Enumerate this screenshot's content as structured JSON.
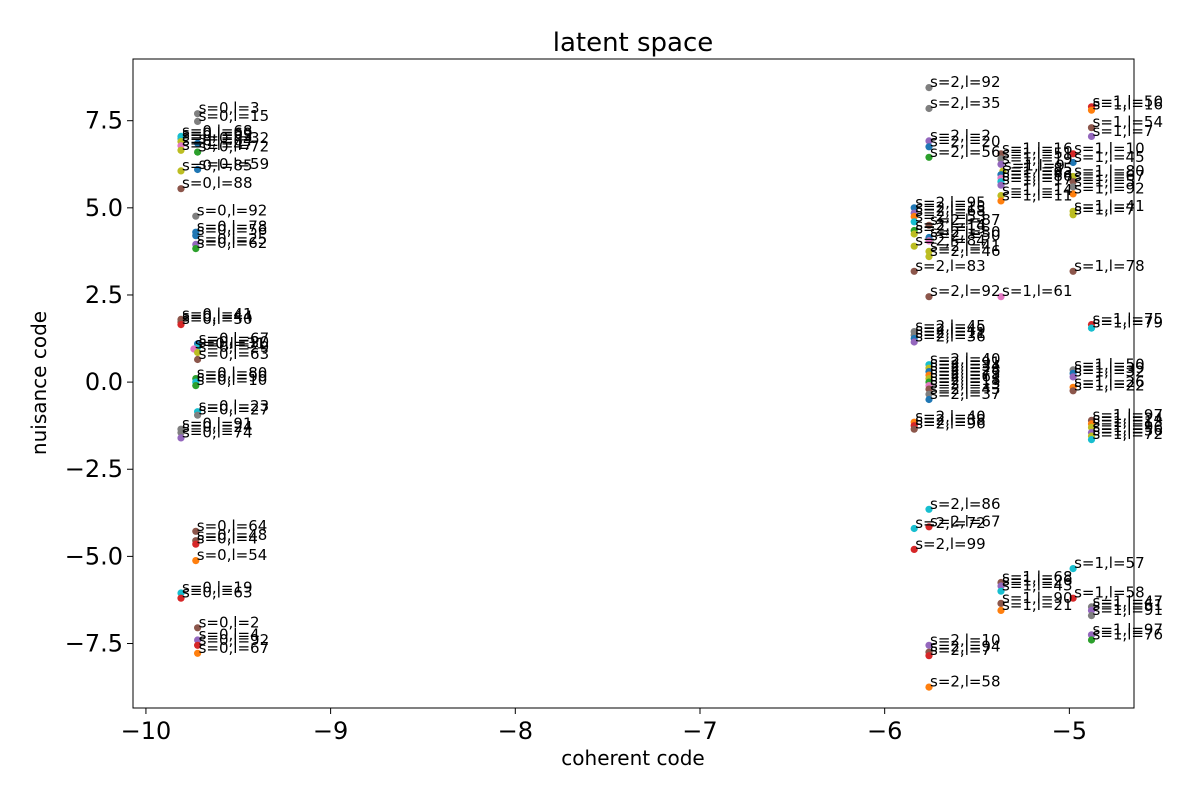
{
  "chart_data": {
    "type": "scatter",
    "title": "latent space",
    "xlabel": "coherent code",
    "ylabel": "nuisance code",
    "xlim": [
      -10.07,
      -4.65
    ],
    "ylim": [
      -9.35,
      9.27
    ],
    "grid": false,
    "xticks": [
      -10,
      -9,
      -8,
      -7,
      -6,
      -5
    ],
    "xtick_labels": [
      "−10",
      "−9",
      "−8",
      "−7",
      "−6",
      "−5"
    ],
    "yticks": [
      7.5,
      5.0,
      2.5,
      0.0,
      -2.5,
      -5.0,
      -7.5
    ],
    "ytick_labels": [
      "7.5",
      "5.0",
      "2.5",
      "0.0",
      "−2.5",
      "−5.0",
      "−7.5"
    ],
    "palette": [
      "#1f77b4",
      "#ff7f0e",
      "#2ca02c",
      "#d62728",
      "#9467bd",
      "#8c564b",
      "#e377c2",
      "#7f7f7f",
      "#bcbd22",
      "#17becf"
    ],
    "points": [
      {
        "x": -9.72,
        "y": 7.7,
        "label": "s=0,l=3",
        "color": "#7f7f7f"
      },
      {
        "x": -9.72,
        "y": 7.48,
        "label": "s=0,l=15",
        "color": "#7f7f7f"
      },
      {
        "x": -9.81,
        "y": 7.05,
        "label": "s=0,l=68",
        "color": "#17becf"
      },
      {
        "x": -9.81,
        "y": 6.98,
        "label": "s=0,l=69",
        "color": "#17becf"
      },
      {
        "x": -9.81,
        "y": 6.9,
        "label": "s=0,l=33",
        "color": "#bcbd22"
      },
      {
        "x": -9.72,
        "y": 6.85,
        "label": "s=0,l=32",
        "color": "#1f77b4"
      },
      {
        "x": -9.81,
        "y": 6.78,
        "label": "s=0,l=64",
        "color": "#e377c2"
      },
      {
        "x": -9.81,
        "y": 6.65,
        "label": "s=0,l=47",
        "color": "#bcbd22"
      },
      {
        "x": -9.72,
        "y": 6.6,
        "label": "s=0,l=72",
        "color": "#2ca02c"
      },
      {
        "x": -9.81,
        "y": 6.06,
        "label": "s=0,l=85",
        "color": "#bcbd22"
      },
      {
        "x": -9.72,
        "y": 6.1,
        "label": "s=0,l=59",
        "color": "#1f77b4"
      },
      {
        "x": -9.81,
        "y": 5.55,
        "label": "s=0,l=88",
        "color": "#8c564b"
      },
      {
        "x": -9.73,
        "y": 4.76,
        "label": "s=0,l=92",
        "color": "#7f7f7f"
      },
      {
        "x": -9.73,
        "y": 4.3,
        "label": "s=0,l=78",
        "color": "#1f77b4"
      },
      {
        "x": -9.73,
        "y": 4.2,
        "label": "s=0,l=56",
        "color": "#1f77b4"
      },
      {
        "x": -9.73,
        "y": 3.95,
        "label": "s=0,l=25",
        "color": "#9467bd"
      },
      {
        "x": -9.73,
        "y": 3.83,
        "label": "s=0,l=62",
        "color": "#2ca02c"
      },
      {
        "x": -9.81,
        "y": 1.8,
        "label": "s=0,l=41",
        "color": "#8c564b"
      },
      {
        "x": -9.81,
        "y": 1.72,
        "label": "s=0,l=44",
        "color": "#8c564b"
      },
      {
        "x": -9.81,
        "y": 1.65,
        "label": "s=0,l=50",
        "color": "#d62728"
      },
      {
        "x": -9.72,
        "y": 1.1,
        "label": "s=0,l=67",
        "color": "#1f77b4"
      },
      {
        "x": -9.72,
        "y": 1.0,
        "label": "s=0,l=20",
        "color": "#17becf"
      },
      {
        "x": -9.74,
        "y": 0.95,
        "label": "s=0,l=31",
        "color": "#e377c2"
      },
      {
        "x": -9.72,
        "y": 0.85,
        "label": "s=0,l=29",
        "color": "#bcbd22"
      },
      {
        "x": -9.72,
        "y": 0.65,
        "label": "s=0,l=63",
        "color": "#8c564b"
      },
      {
        "x": -9.73,
        "y": 0.1,
        "label": "s=0,l=80",
        "color": "#2ca02c"
      },
      {
        "x": -9.73,
        "y": 0.0,
        "label": "s=0,l=90",
        "color": "#17becf"
      },
      {
        "x": -9.73,
        "y": -0.1,
        "label": "s=0,l=10",
        "color": "#2ca02c"
      },
      {
        "x": -9.72,
        "y": -0.85,
        "label": "s=0,l=23",
        "color": "#17becf"
      },
      {
        "x": -9.72,
        "y": -0.95,
        "label": "s=0,l=27",
        "color": "#7f7f7f"
      },
      {
        "x": -9.81,
        "y": -1.35,
        "label": "s=0,l=91",
        "color": "#7f7f7f"
      },
      {
        "x": -9.81,
        "y": -1.45,
        "label": "s=0,l=24",
        "color": "#7f7f7f"
      },
      {
        "x": -9.81,
        "y": -1.6,
        "label": "s=0,l=74",
        "color": "#9467bd"
      },
      {
        "x": -9.73,
        "y": -4.28,
        "label": "s=0,l=64",
        "color": "#8c564b"
      },
      {
        "x": -9.73,
        "y": -4.55,
        "label": "s=0,l=48",
        "color": "#8c564b"
      },
      {
        "x": -9.73,
        "y": -4.65,
        "label": "s=0,l=4",
        "color": "#d62728"
      },
      {
        "x": -9.73,
        "y": -5.12,
        "label": "s=0,l=54",
        "color": "#ff7f0e"
      },
      {
        "x": -9.81,
        "y": -6.05,
        "label": "s=0,l=19",
        "color": "#17becf"
      },
      {
        "x": -9.81,
        "y": -6.2,
        "label": "s=0,l=63",
        "color": "#d62728"
      },
      {
        "x": -9.72,
        "y": -7.05,
        "label": "s=0,l=2",
        "color": "#8c564b"
      },
      {
        "x": -9.72,
        "y": -7.4,
        "label": "s=0,l=4",
        "color": "#9467bd"
      },
      {
        "x": -9.72,
        "y": -7.55,
        "label": "s=0,l=92",
        "color": "#d62728"
      },
      {
        "x": -9.72,
        "y": -7.78,
        "label": "s=0,l=67",
        "color": "#ff7f0e"
      },
      {
        "x": -5.76,
        "y": 8.45,
        "label": "s=2,l=92",
        "color": "#7f7f7f"
      },
      {
        "x": -5.76,
        "y": 7.85,
        "label": "s=2,l=35",
        "color": "#7f7f7f"
      },
      {
        "x": -5.76,
        "y": 6.92,
        "label": "s=2,l=2",
        "color": "#9467bd"
      },
      {
        "x": -5.76,
        "y": 6.75,
        "label": "s=2,l=20",
        "color": "#1f77b4"
      },
      {
        "x": -5.76,
        "y": 6.45,
        "label": "s=2,l=56",
        "color": "#2ca02c"
      },
      {
        "x": -5.84,
        "y": 5.0,
        "label": "s=2,l=95",
        "color": "#1f77b4"
      },
      {
        "x": -5.84,
        "y": 4.85,
        "label": "s=2,l=15",
        "color": "#9467bd"
      },
      {
        "x": -5.84,
        "y": 4.75,
        "label": "s=2,l=68",
        "color": "#ff7f0e"
      },
      {
        "x": -5.84,
        "y": 4.6,
        "label": "s=2,l=53",
        "color": "#17becf"
      },
      {
        "x": -5.76,
        "y": 4.5,
        "label": "s=2,l=87",
        "color": "#8c564b"
      },
      {
        "x": -5.84,
        "y": 4.35,
        "label": "s=2,l=14",
        "color": "#2ca02c"
      },
      {
        "x": -5.84,
        "y": 4.25,
        "label": "s=2,l=19",
        "color": "#bcbd22"
      },
      {
        "x": -5.76,
        "y": 4.15,
        "label": "s=2,l=30",
        "color": "#1f77b4"
      },
      {
        "x": -5.76,
        "y": 4.05,
        "label": "s=2,l=50",
        "color": "#e377c2"
      },
      {
        "x": -5.84,
        "y": 3.9,
        "label": "s=2,l=84",
        "color": "#bcbd22"
      },
      {
        "x": -5.76,
        "y": 3.75,
        "label": "s=2,l=41",
        "color": "#bcbd22"
      },
      {
        "x": -5.76,
        "y": 3.6,
        "label": "s=2,l=46",
        "color": "#bcbd22"
      },
      {
        "x": -5.84,
        "y": 3.18,
        "label": "s=2,l=83",
        "color": "#8c564b"
      },
      {
        "x": -5.76,
        "y": 2.45,
        "label": "s=2,l=92",
        "color": "#8c564b"
      },
      {
        "x": -5.84,
        "y": 1.45,
        "label": "s=2,l=45",
        "color": "#7f7f7f"
      },
      {
        "x": -5.84,
        "y": 1.35,
        "label": "s=2,l=49",
        "color": "#7f7f7f"
      },
      {
        "x": -5.84,
        "y": 1.25,
        "label": "s=2,l=11",
        "color": "#1f77b4"
      },
      {
        "x": -5.84,
        "y": 1.15,
        "label": "s=2,l=36",
        "color": "#9467bd"
      },
      {
        "x": -5.76,
        "y": 0.5,
        "label": "s=2,l=40",
        "color": "#17becf"
      },
      {
        "x": -5.76,
        "y": 0.4,
        "label": "s=2,l=91",
        "color": "#bcbd22"
      },
      {
        "x": -5.76,
        "y": 0.3,
        "label": "s=2,l=34",
        "color": "#1f77b4"
      },
      {
        "x": -5.76,
        "y": 0.2,
        "label": "s=2,l=28",
        "color": "#ff7f0e"
      },
      {
        "x": -5.76,
        "y": 0.1,
        "label": "s=2,l=75",
        "color": "#bcbd22"
      },
      {
        "x": -5.76,
        "y": 0.0,
        "label": "s=2,l=61",
        "color": "#2ca02c"
      },
      {
        "x": -5.76,
        "y": -0.1,
        "label": "s=2,l=18",
        "color": "#e377c2"
      },
      {
        "x": -5.76,
        "y": -0.2,
        "label": "s=2,l=13",
        "color": "#8c564b"
      },
      {
        "x": -5.76,
        "y": -0.35,
        "label": "s=2,l=43",
        "color": "#7f7f7f"
      },
      {
        "x": -5.76,
        "y": -0.5,
        "label": "s=2,l=37",
        "color": "#1f77b4"
      },
      {
        "x": -5.84,
        "y": -1.15,
        "label": "s=2,l=40",
        "color": "#ff7f0e"
      },
      {
        "x": -5.84,
        "y": -1.25,
        "label": "s=2,l=38",
        "color": "#d62728"
      },
      {
        "x": -5.84,
        "y": -1.35,
        "label": "s=2,l=96",
        "color": "#8c564b"
      },
      {
        "x": -5.76,
        "y": -3.65,
        "label": "s=2,l=86",
        "color": "#17becf"
      },
      {
        "x": -5.84,
        "y": -4.2,
        "label": "s=2,l=72",
        "color": "#17becf"
      },
      {
        "x": -5.76,
        "y": -4.15,
        "label": "s=2,l=67",
        "color": "#d62728"
      },
      {
        "x": -5.84,
        "y": -4.8,
        "label": "s=2,l=99",
        "color": "#d62728"
      },
      {
        "x": -5.76,
        "y": -7.55,
        "label": "s=2,l=10",
        "color": "#9467bd"
      },
      {
        "x": -5.76,
        "y": -7.75,
        "label": "s=2,l=94",
        "color": "#8c564b"
      },
      {
        "x": -5.76,
        "y": -7.85,
        "label": "s=2,l=7",
        "color": "#d62728"
      },
      {
        "x": -5.76,
        "y": -8.75,
        "label": "s=2,l=58",
        "color": "#ff7f0e"
      },
      {
        "x": -5.37,
        "y": 6.55,
        "label": "s=1,l=16",
        "color": "#8c564b"
      },
      {
        "x": -5.37,
        "y": 6.4,
        "label": "s=1,l=51",
        "color": "#7f7f7f"
      },
      {
        "x": -5.37,
        "y": 6.25,
        "label": "s=1,l=19",
        "color": "#9467bd"
      },
      {
        "x": -5.36,
        "y": 6.05,
        "label": "s=1,l=9",
        "color": "#bcbd22"
      },
      {
        "x": -5.37,
        "y": 5.95,
        "label": "s=1,l=85",
        "color": "#1f77b4"
      },
      {
        "x": -5.37,
        "y": 5.85,
        "label": "s=1,l=83",
        "color": "#e377c2"
      },
      {
        "x": -5.37,
        "y": 5.75,
        "label": "s=1,l=86",
        "color": "#17becf"
      },
      {
        "x": -5.37,
        "y": 5.65,
        "label": "s=1,l=17",
        "color": "#9467bd"
      },
      {
        "x": -5.37,
        "y": 5.35,
        "label": "s=1,l=14",
        "color": "#bcbd22"
      },
      {
        "x": -5.37,
        "y": 5.2,
        "label": "s=1,l=11",
        "color": "#ff7f0e"
      },
      {
        "x": -4.98,
        "y": 6.55,
        "label": "s=1,l=10",
        "color": "#d62728"
      },
      {
        "x": -4.98,
        "y": 6.3,
        "label": "s=1,l=45",
        "color": "#1f77b4"
      },
      {
        "x": -4.98,
        "y": 5.9,
        "label": "s=1,l=80",
        "color": "#bcbd22"
      },
      {
        "x": -4.98,
        "y": 5.75,
        "label": "s=1,l=67",
        "color": "#8c564b"
      },
      {
        "x": -4.98,
        "y": 5.4,
        "label": "s=1,l=92",
        "color": "#ff7f0e"
      },
      {
        "x": -4.98,
        "y": 5.6,
        "label": "s=1,l=5",
        "color": "#7f7f7f"
      },
      {
        "x": -4.98,
        "y": 4.9,
        "label": "s=1,l=41",
        "color": "#bcbd22"
      },
      {
        "x": -4.98,
        "y": 4.8,
        "label": "s=1,l=7",
        "color": "#bcbd22"
      },
      {
        "x": -4.88,
        "y": 7.9,
        "label": "s=1,l=50",
        "color": "#d62728"
      },
      {
        "x": -4.88,
        "y": 7.8,
        "label": "s=1,l=16",
        "color": "#ff7f0e"
      },
      {
        "x": -4.88,
        "y": 7.3,
        "label": "s=1,l=54",
        "color": "#8c564b"
      },
      {
        "x": -4.88,
        "y": 7.05,
        "label": "s=1,l=7",
        "color": "#9467bd"
      },
      {
        "x": -4.98,
        "y": 3.18,
        "label": "s=1,l=78",
        "color": "#8c564b"
      },
      {
        "x": -5.37,
        "y": 2.45,
        "label": "s=1,l=61",
        "color": "#e377c2"
      },
      {
        "x": -4.88,
        "y": 1.65,
        "label": "s=1,l=75",
        "color": "#d62728"
      },
      {
        "x": -4.88,
        "y": 1.55,
        "label": "s=1,l=79",
        "color": "#17becf"
      },
      {
        "x": -4.98,
        "y": 0.35,
        "label": "s=1,l=50",
        "color": "#7f7f7f"
      },
      {
        "x": -4.98,
        "y": 0.25,
        "label": "s=1,l=39",
        "color": "#1f77b4"
      },
      {
        "x": -4.98,
        "y": 0.15,
        "label": "s=1,l=32",
        "color": "#9467bd"
      },
      {
        "x": -4.98,
        "y": -0.15,
        "label": "s=1,l=26",
        "color": "#ff7f0e"
      },
      {
        "x": -4.98,
        "y": -0.25,
        "label": "s=1,l=22",
        "color": "#8c564b"
      },
      {
        "x": -4.88,
        "y": -1.1,
        "label": "s=1,l=97",
        "color": "#8c564b"
      },
      {
        "x": -4.88,
        "y": -1.2,
        "label": "s=1,l=24",
        "color": "#ff7f0e"
      },
      {
        "x": -4.88,
        "y": -1.3,
        "label": "s=1,l=13",
        "color": "#bcbd22"
      },
      {
        "x": -4.88,
        "y": -1.45,
        "label": "s=1,l=96",
        "color": "#9467bd"
      },
      {
        "x": -4.88,
        "y": -1.55,
        "label": "s=1,l=56",
        "color": "#bcbd22"
      },
      {
        "x": -4.88,
        "y": -1.65,
        "label": "s=1,l=72",
        "color": "#17becf"
      },
      {
        "x": -4.98,
        "y": -5.35,
        "label": "s=1,l=57",
        "color": "#17becf"
      },
      {
        "x": -5.37,
        "y": -5.75,
        "label": "s=1,l=68",
        "color": "#8c564b"
      },
      {
        "x": -5.37,
        "y": -5.85,
        "label": "s=1,l=26",
        "color": "#9467bd"
      },
      {
        "x": -5.37,
        "y": -6.0,
        "label": "s=1,l=43",
        "color": "#17becf"
      },
      {
        "x": -4.98,
        "y": -6.2,
        "label": "s=1,l=58",
        "color": "#d62728"
      },
      {
        "x": -5.37,
        "y": -6.35,
        "label": "s=1,l=90",
        "color": "#8c564b"
      },
      {
        "x": -5.37,
        "y": -6.55,
        "label": "s=1,l=21",
        "color": "#ff7f0e"
      },
      {
        "x": -4.88,
        "y": -6.45,
        "label": "s=1,l=47",
        "color": "#7f7f7f"
      },
      {
        "x": -4.88,
        "y": -6.55,
        "label": "s=1,l=61",
        "color": "#9467bd"
      },
      {
        "x": -4.88,
        "y": -6.7,
        "label": "s=1,l=91",
        "color": "#7f7f7f"
      },
      {
        "x": -4.88,
        "y": -7.25,
        "label": "s=1,l=97",
        "color": "#9467bd"
      },
      {
        "x": -4.88,
        "y": -7.4,
        "label": "s=1,l=76",
        "color": "#2ca02c"
      }
    ]
  }
}
